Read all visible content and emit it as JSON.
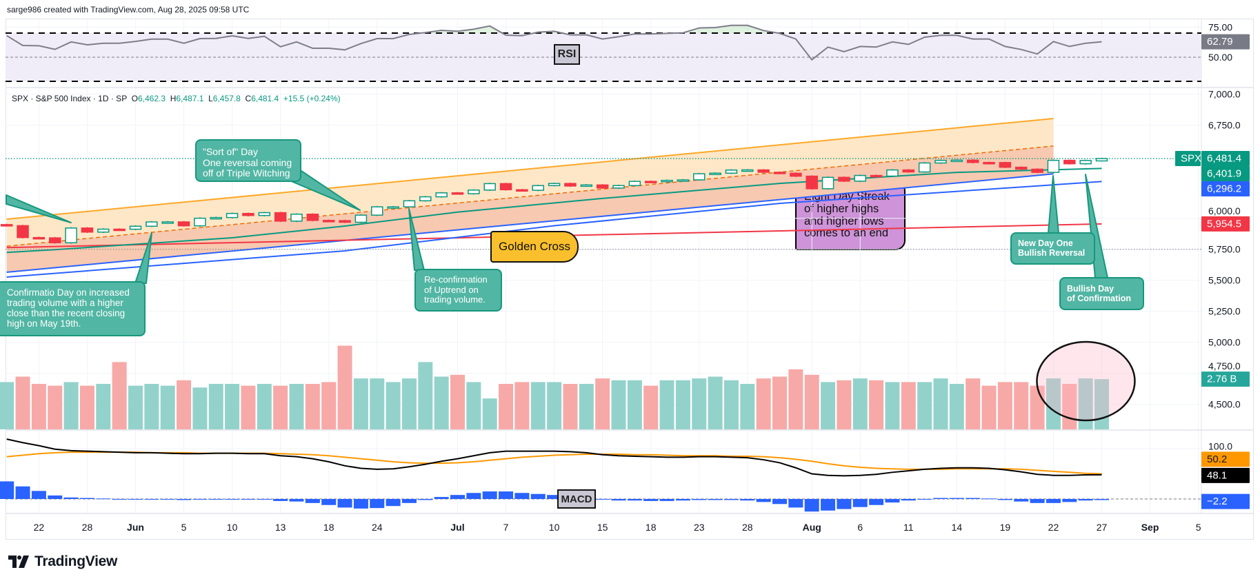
{
  "header": {
    "attribution": "sarge986 created with TradingView.com, Aug 28, 2025 09:58 UTC"
  },
  "legend": {
    "symbol": "SPX · S&P 500 Index · 1D · SP",
    "o_label": "O",
    "o": "6,462.3",
    "h_label": "H",
    "h": "6,487.1",
    "l_label": "L",
    "l": "6,457.8",
    "c_label": "C",
    "c": "6,481.4",
    "change": "+15.5 (+0.24%)"
  },
  "indicators": {
    "rsi_label": "RSI",
    "macd_label": "MACD"
  },
  "annotations": {
    "sort_of": [
      "\"Sort of\" Day",
      "One reversal coming",
      "off of Triple Witching"
    ],
    "confirmation": [
      "Confirmatio Day on increased",
      "trading volume with a higher",
      "close than the recent closing",
      "high on May 19th."
    ],
    "reconfirmation": [
      "Re-confirmation",
      "of Uptrend on",
      "trading volume."
    ],
    "golden_cross": "Golden Cross",
    "eight_day": [
      "Eight Day Streak",
      "of higher highs",
      "and higher lows",
      "comes to an end"
    ],
    "new_day": [
      "New Day One",
      "Bullish Reversal"
    ],
    "bullish_confirmation": [
      "Bullish Day",
      "of Confirmation"
    ]
  },
  "price_axis": {
    "ticks": [
      {
        "value": 7000,
        "label": "7,000.0"
      },
      {
        "value": 6750,
        "label": "6,750.0"
      },
      {
        "value": 6000,
        "label": "6,000.0"
      },
      {
        "value": 5750,
        "label": "5,750.0"
      },
      {
        "value": 5500,
        "label": "5,500.0"
      },
      {
        "value": 5250,
        "label": "5,250.0"
      },
      {
        "value": 5000,
        "label": "5,000.0"
      },
      {
        "value": 4750,
        "label": "4,750.0"
      },
      {
        "value": 4500,
        "label": "4,500.0"
      }
    ],
    "symbol_tag": "SPX",
    "tags": [
      {
        "value": 6481.4,
        "label": "6,481.4",
        "color": "#089981"
      },
      {
        "value": 6401.9,
        "label": "6,401.9",
        "color": "#089981"
      },
      {
        "value": 6296.2,
        "label": "6,296.2",
        "color": "#2962ff"
      },
      {
        "value": 5954.5,
        "label": "5,954.5",
        "color": "#f23645"
      }
    ],
    "volume_tag": {
      "value": 2.76,
      "label": "2.76 B",
      "color": "#26a69a"
    }
  },
  "rsi_axis": {
    "ticks": [
      {
        "value": 75,
        "label": "75.00"
      },
      {
        "value": 50,
        "label": "50.00"
      }
    ],
    "tag": {
      "value": 62.79,
      "label": "62.79",
      "color": "#787b86"
    }
  },
  "macd_axis": {
    "ticks": [
      {
        "value": 100,
        "label": "100.0"
      }
    ],
    "tags": [
      {
        "value": 50.2,
        "label": "50.2",
        "color": "#ff9800",
        "text": "#131722"
      },
      {
        "value": 48.1,
        "label": "48.1",
        "color": "#000000",
        "text": "#ffffff"
      },
      {
        "value": -2.2,
        "label": "−2.2",
        "color": "#2962ff",
        "text": "#ffffff"
      }
    ]
  },
  "time_axis": {
    "ticks": [
      {
        "label": "22",
        "date": "May 22"
      },
      {
        "label": "28",
        "date": "May 28"
      },
      {
        "label": "Jun",
        "date": "Jun 2",
        "month": true
      },
      {
        "label": "5",
        "date": "Jun 5"
      },
      {
        "label": "10",
        "date": "Jun 10"
      },
      {
        "label": "13",
        "date": "Jun 13"
      },
      {
        "label": "18",
        "date": "Jun 18"
      },
      {
        "label": "24",
        "date": "Jun 24"
      },
      {
        "label": "Jul",
        "date": "Jul 1",
        "month": true
      },
      {
        "label": "7",
        "date": "Jul 7"
      },
      {
        "label": "10",
        "date": "Jul 10"
      },
      {
        "label": "15",
        "date": "Jul 15"
      },
      {
        "label": "18",
        "date": "Jul 18"
      },
      {
        "label": "23",
        "date": "Jul 23"
      },
      {
        "label": "28",
        "date": "Jul 28"
      },
      {
        "label": "Aug",
        "date": "Aug 1",
        "month": true
      },
      {
        "label": "6",
        "date": "Aug 6"
      },
      {
        "label": "11",
        "date": "Aug 11"
      },
      {
        "label": "14",
        "date": "Aug 14"
      },
      {
        "label": "19",
        "date": "Aug 19"
      },
      {
        "label": "22",
        "date": "Aug 22"
      },
      {
        "label": "27",
        "date": "Aug 27"
      },
      {
        "label": "Sep",
        "date": "Sep 2",
        "month": true
      },
      {
        "label": "5",
        "date": "Sep 5"
      }
    ]
  },
  "colors": {
    "up": "#089981",
    "down": "#f23645",
    "volume_up": "#93d2cb",
    "volume_down": "#f7a9a7",
    "channel_upper": "#ffa726",
    "channel_mid": "#ef6c00",
    "channel_lower": "#2962ff",
    "ma_green": "#089981",
    "ma_blue": "#2962ff",
    "ma_red": "#f23645",
    "rsi_line": "#7e7d8a",
    "macd_line": "#000000",
    "signal_line": "#ff9800",
    "histogram": "#2962ff",
    "callout": "#52b6a4",
    "golden_cross": "#f9bf2c",
    "streak_box": "#ce93d8"
  },
  "logo_text": "TradingView",
  "chart_data": {
    "type": "candlestick",
    "symbol": "SPX",
    "interval": "1D",
    "grid": true,
    "price_range": [
      4400,
      7050
    ],
    "dates": [
      "May 20",
      "May 21",
      "May 22",
      "May 23",
      "May 27",
      "May 28",
      "May 29",
      "May 30",
      "Jun 2",
      "Jun 3",
      "Jun 4",
      "Jun 5",
      "Jun 6",
      "Jun 9",
      "Jun 10",
      "Jun 11",
      "Jun 12",
      "Jun 13",
      "Jun 16",
      "Jun 17",
      "Jun 18",
      "Jun 20",
      "Jun 23",
      "Jun 24",
      "Jun 25",
      "Jun 26",
      "Jun 27",
      "Jun 30",
      "Jul 1",
      "Jul 2",
      "Jul 3",
      "Jul 7",
      "Jul 8",
      "Jul 9",
      "Jul 10",
      "Jul 11",
      "Jul 14",
      "Jul 15",
      "Jul 16",
      "Jul 17",
      "Jul 18",
      "Jul 21",
      "Jul 22",
      "Jul 23",
      "Jul 24",
      "Jul 25",
      "Jul 28",
      "Jul 29",
      "Jul 30",
      "Jul 31",
      "Aug 1",
      "Aug 4",
      "Aug 5",
      "Aug 6",
      "Aug 7",
      "Aug 8",
      "Aug 11",
      "Aug 12",
      "Aug 13",
      "Aug 14",
      "Aug 15",
      "Aug 18",
      "Aug 19",
      "Aug 20",
      "Aug 21",
      "Aug 22",
      "Aug 25",
      "Aug 26",
      "Aug 27"
    ],
    "close": [
      5940.5,
      5844.6,
      5842.0,
      5802.8,
      5921.5,
      5888.6,
      5912.2,
      5911.7,
      5935.9,
      5970.4,
      5970.8,
      5939.3,
      6000.4,
      6005.9,
      6038.8,
      6022.2,
      6045.3,
      5977.0,
      6033.1,
      5982.7,
      5980.9,
      5967.8,
      6025.2,
      6092.2,
      6092.2,
      6141.0,
      6173.1,
      6205.0,
      6198.0,
      6227.4,
      6279.4,
      6230.0,
      6225.5,
      6263.3,
      6280.5,
      6259.8,
      6268.6,
      6243.8,
      6263.7,
      6297.4,
      6296.8,
      6305.6,
      6309.6,
      6358.9,
      6363.4,
      6388.6,
      6389.8,
      6370.9,
      6362.9,
      6339.4,
      6238.0,
      6329.9,
      6299.2,
      6345.1,
      6340.0,
      6389.5,
      6373.5,
      6445.8,
      6466.6,
      6468.5,
      6449.8,
      6449.2,
      6411.4,
      6395.8,
      6370.2,
      6466.9,
      6439.3,
      6465.9,
      6481.4
    ],
    "last_bar": {
      "open": 6462.3,
      "high": 6487.1,
      "low": 6457.8,
      "close": 6481.4
    },
    "volume_b": [
      2.6,
      2.9,
      2.5,
      2.4,
      2.6,
      2.4,
      2.5,
      3.7,
      2.4,
      2.5,
      2.4,
      2.7,
      2.3,
      2.5,
      2.5,
      2.4,
      2.5,
      2.4,
      2.5,
      2.5,
      2.6,
      4.6,
      2.8,
      2.8,
      2.6,
      2.8,
      3.7,
      2.9,
      3.0,
      2.6,
      1.7,
      2.5,
      2.6,
      2.6,
      2.6,
      2.5,
      2.5,
      2.8,
      2.7,
      2.7,
      2.4,
      2.7,
      2.7,
      2.8,
      2.9,
      2.7,
      2.5,
      2.8,
      2.9,
      3.3,
      3.0,
      2.6,
      2.7,
      2.8,
      2.7,
      2.6,
      2.6,
      2.6,
      2.8,
      2.5,
      2.8,
      2.4,
      2.6,
      2.6,
      2.4,
      2.8,
      2.5,
      2.8,
      2.76
    ],
    "overlays": {
      "channel_upper": [
        [
          "May 20",
          5993
        ],
        [
          "Aug 22",
          6804
        ]
      ],
      "channel_mid": [
        [
          "May 20",
          5775
        ],
        [
          "Aug 22",
          6583
        ]
      ],
      "channel_lower": [
        [
          "May 20",
          5565
        ],
        [
          "Aug 22",
          6358
        ]
      ],
      "ma_green": [
        [
          "May 20",
          5725
        ],
        [
          "May 23",
          5747
        ],
        [
          "Jun 10",
          5843
        ],
        [
          "Jun 20",
          5937
        ],
        [
          "Jul 1",
          6050
        ],
        [
          "Jul 15",
          6160
        ],
        [
          "Jul 30",
          6281
        ],
        [
          "Aug 14",
          6370
        ],
        [
          "Aug 27",
          6401.9
        ]
      ],
      "ma_blue": [
        [
          "May 20",
          5526
        ],
        [
          "Jun 20",
          5737
        ],
        [
          "Jul 10",
          5940
        ],
        [
          "Jul 30",
          6120
        ],
        [
          "Aug 27",
          6296.2
        ]
      ],
      "ma_red": [
        [
          "May 20",
          5764
        ],
        [
          "Aug 27",
          5954.5
        ]
      ],
      "price_line": 6481.4,
      "dotted_level": 5750
    },
    "rsi": {
      "overbought": 70,
      "oversold": 30,
      "mid": 50,
      "values": [
        67.9,
        59.7,
        59.5,
        56.5,
        62.7,
        60.3,
        61.6,
        61.6,
        63.1,
        65.0,
        65.0,
        61.6,
        65.4,
        65.6,
        67.7,
        65.6,
        67.3,
        58.7,
        62.7,
        57.4,
        57.4,
        56.1,
        61.3,
        65.4,
        65.4,
        68.9,
        70.4,
        72.3,
        71.5,
        73.2,
        75.9,
        68.3,
        67.9,
        70.8,
        71.5,
        68.5,
        68.6,
        65.1,
        67.0,
        69.3,
        69.3,
        69.8,
        70.2,
        74.2,
        74.6,
        76.4,
        76.4,
        72.1,
        69.8,
        65.1,
        47.9,
        58.4,
        54.6,
        58.9,
        58.4,
        62.7,
        60.6,
        66.6,
        68.1,
        68.1,
        65.1,
        65.1,
        58.9,
        56.4,
        52.7,
        63.0,
        58.9,
        61.6,
        62.79
      ]
    },
    "macd": {
      "macd": [
        119,
        112,
        106,
        99,
        96,
        95,
        94,
        93,
        92,
        92,
        91,
        90,
        90,
        91,
        91,
        90,
        90,
        86,
        84,
        80,
        74,
        66,
        61,
        59,
        60,
        64,
        69,
        75,
        80,
        86,
        92,
        95,
        95,
        95,
        95,
        94,
        92,
        88,
        86,
        85,
        84,
        83,
        83,
        84,
        84,
        83,
        82,
        78,
        72,
        62,
        50,
        47,
        46,
        47,
        49,
        53,
        56,
        59,
        61,
        62,
        62,
        61,
        58,
        54,
        49,
        47,
        47,
        48,
        48.1
      ],
      "signal": [
        84,
        87,
        90,
        92,
        93,
        93,
        93,
        93,
        93,
        92,
        92,
        92,
        91,
        91,
        91,
        91,
        91,
        90,
        89,
        88,
        86,
        83,
        80,
        77,
        74,
        72,
        71,
        71,
        72,
        74,
        77,
        80,
        83,
        85,
        87,
        88,
        89,
        89,
        89,
        88,
        88,
        87,
        86,
        86,
        86,
        85,
        85,
        84,
        82,
        79,
        75,
        70,
        66,
        63,
        61,
        60,
        59,
        59,
        59,
        60,
        60,
        60,
        60,
        59,
        57,
        55,
        53,
        51,
        50.2
      ]
    },
    "highlight_ellipse_dates": [
      "Aug 22",
      "Aug 27"
    ]
  }
}
